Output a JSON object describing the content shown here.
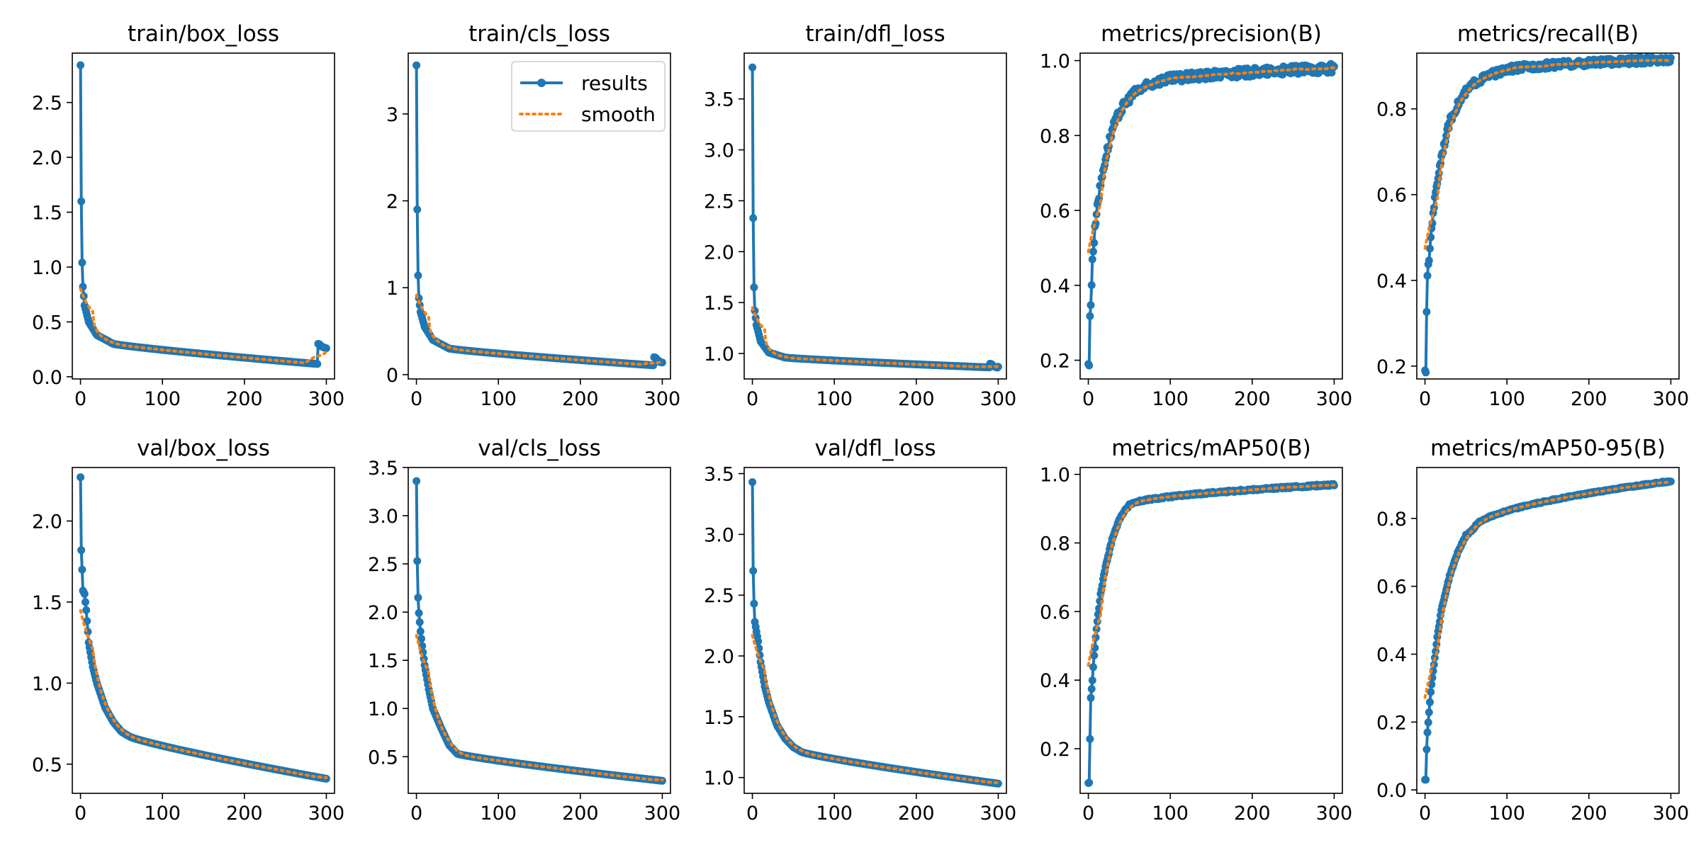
{
  "colors": {
    "results": "#1f77b4",
    "smooth": "#ff7f0e"
  },
  "legend": {
    "results_label": "results",
    "smooth_label": "smooth",
    "location": "upper right of train/cls_loss"
  },
  "chart_data": [
    {
      "type": "line",
      "title": "train/box_loss",
      "xlim": [
        -10,
        310
      ],
      "ylim": [
        -0.02,
        2.95
      ],
      "xticks": [
        {
          "v": 0,
          "label": "0"
        },
        {
          "v": 100,
          "label": "100"
        },
        {
          "v": 200,
          "label": "200"
        },
        {
          "v": 300,
          "label": "300"
        }
      ],
      "yticks": [
        {
          "v": 0,
          "label": "0.0"
        },
        {
          "v": 0.5,
          "label": "0.5"
        },
        {
          "v": 1,
          "label": "1.0"
        },
        {
          "v": 1.5,
          "label": "1.5"
        },
        {
          "v": 2,
          "label": "2.0"
        },
        {
          "v": 2.5,
          "label": "2.5"
        }
      ],
      "shape": "decay",
      "y0": 2.84,
      "y_end": 0.11,
      "knee": 0.28,
      "k": 4.5,
      "anchors": [
        [
          1,
          1.6
        ],
        [
          2,
          1.04
        ],
        [
          3,
          0.82
        ],
        [
          5,
          0.65
        ],
        [
          10,
          0.5
        ],
        [
          20,
          0.38
        ],
        [
          40,
          0.3
        ]
      ],
      "tail": [
        [
          290,
          0.3
        ],
        [
          293,
          0.28
        ],
        [
          296,
          0.27
        ],
        [
          300,
          0.26
        ]
      ],
      "series": [
        {
          "name": "results",
          "values": "samples from shape"
        },
        {
          "name": "smooth",
          "values": "running mean of results"
        }
      ]
    },
    {
      "type": "line",
      "title": "train/cls_loss",
      "xlim": [
        -10,
        310
      ],
      "ylim": [
        -0.05,
        3.7
      ],
      "xticks": [
        {
          "v": 0,
          "label": "0"
        },
        {
          "v": 100,
          "label": "100"
        },
        {
          "v": 200,
          "label": "200"
        },
        {
          "v": 300,
          "label": "300"
        }
      ],
      "yticks": [
        {
          "v": 0,
          "label": "0"
        },
        {
          "v": 1,
          "label": "1"
        },
        {
          "v": 2,
          "label": "2"
        },
        {
          "v": 3,
          "label": "3"
        }
      ],
      "shape": "decay",
      "y0": 3.56,
      "y_end": 0.1,
      "knee": 0.25,
      "k": 4.5,
      "anchors": [
        [
          1,
          1.9
        ],
        [
          2,
          1.14
        ],
        [
          3,
          0.88
        ],
        [
          5,
          0.72
        ],
        [
          10,
          0.55
        ],
        [
          20,
          0.4
        ],
        [
          40,
          0.3
        ]
      ],
      "tail": [
        [
          290,
          0.2
        ],
        [
          293,
          0.17
        ],
        [
          296,
          0.15
        ],
        [
          300,
          0.14
        ]
      ],
      "series": [
        {
          "name": "results"
        },
        {
          "name": "smooth"
        }
      ]
    },
    {
      "type": "line",
      "title": "train/dfl_loss",
      "xlim": [
        -10,
        310
      ],
      "ylim": [
        0.75,
        3.95
      ],
      "xticks": [
        {
          "v": 0,
          "label": "0"
        },
        {
          "v": 100,
          "label": "100"
        },
        {
          "v": 200,
          "label": "200"
        },
        {
          "v": 300,
          "label": "300"
        }
      ],
      "yticks": [
        {
          "v": 1,
          "label": "1.0"
        },
        {
          "v": 1.5,
          "label": "1.5"
        },
        {
          "v": 2,
          "label": "2.0"
        },
        {
          "v": 2.5,
          "label": "2.5"
        },
        {
          "v": 3,
          "label": "3.0"
        },
        {
          "v": 3.5,
          "label": "3.5"
        }
      ],
      "shape": "decay",
      "y0": 3.81,
      "y_end": 0.86,
      "knee": 0.96,
      "k": 4.5,
      "anchors": [
        [
          1,
          2.33
        ],
        [
          2,
          1.65
        ],
        [
          3,
          1.42
        ],
        [
          5,
          1.28
        ],
        [
          10,
          1.12
        ],
        [
          20,
          1.01
        ],
        [
          40,
          0.96
        ]
      ],
      "tail": [
        [
          290,
          0.9
        ],
        [
          293,
          0.88
        ],
        [
          296,
          0.87
        ],
        [
          300,
          0.87
        ]
      ],
      "series": [
        {
          "name": "results"
        },
        {
          "name": "smooth"
        }
      ]
    },
    {
      "type": "line",
      "title": "metrics/precision(B)",
      "xlim": [
        -10,
        310
      ],
      "ylim": [
        0.15,
        1.02
      ],
      "xticks": [
        {
          "v": 0,
          "label": "0"
        },
        {
          "v": 100,
          "label": "100"
        },
        {
          "v": 200,
          "label": "200"
        },
        {
          "v": 300,
          "label": "300"
        }
      ],
      "yticks": [
        {
          "v": 0.2,
          "label": "0.2"
        },
        {
          "v": 0.4,
          "label": "0.4"
        },
        {
          "v": 0.6,
          "label": "0.6"
        },
        {
          "v": 0.8,
          "label": "0.8"
        },
        {
          "v": 1,
          "label": "1.0"
        }
      ],
      "shape": "rise",
      "y0": 0.19,
      "y_end": 0.98,
      "knee": 0.93,
      "k": 0.25,
      "jitter": 0.012,
      "anchors": [
        [
          1,
          0.19
        ],
        [
          2,
          0.31
        ],
        [
          3,
          0.35
        ],
        [
          5,
          0.47
        ],
        [
          7,
          0.52
        ],
        [
          10,
          0.6
        ],
        [
          15,
          0.67
        ],
        [
          20,
          0.73
        ],
        [
          25,
          0.78
        ],
        [
          30,
          0.82
        ],
        [
          40,
          0.87
        ],
        [
          50,
          0.9
        ],
        [
          60,
          0.92
        ],
        [
          80,
          0.94
        ]
      ],
      "series": [
        {
          "name": "results"
        },
        {
          "name": "smooth"
        }
      ]
    },
    {
      "type": "line",
      "title": "metrics/recall(B)",
      "xlim": [
        -10,
        310
      ],
      "ylim": [
        0.17,
        0.93
      ],
      "xticks": [
        {
          "v": 0,
          "label": "0"
        },
        {
          "v": 100,
          "label": "100"
        },
        {
          "v": 200,
          "label": "200"
        },
        {
          "v": 300,
          "label": "300"
        }
      ],
      "yticks": [
        {
          "v": 0.2,
          "label": "0.2"
        },
        {
          "v": 0.4,
          "label": "0.4"
        },
        {
          "v": 0.6,
          "label": "0.6"
        },
        {
          "v": 0.8,
          "label": "0.8"
        }
      ],
      "shape": "rise",
      "y0": 0.19,
      "y_end": 0.915,
      "knee": 0.88,
      "k": 0.2,
      "jitter": 0.008,
      "anchors": [
        [
          1,
          0.19
        ],
        [
          2,
          0.32
        ],
        [
          3,
          0.41
        ],
        [
          5,
          0.45
        ],
        [
          7,
          0.5
        ],
        [
          10,
          0.56
        ],
        [
          15,
          0.63
        ],
        [
          20,
          0.69
        ],
        [
          25,
          0.73
        ],
        [
          30,
          0.77
        ],
        [
          40,
          0.81
        ],
        [
          50,
          0.84
        ],
        [
          60,
          0.86
        ],
        [
          80,
          0.88
        ],
        [
          100,
          0.89
        ]
      ],
      "series": [
        {
          "name": "results"
        },
        {
          "name": "smooth"
        }
      ]
    },
    {
      "type": "line",
      "title": "val/box_loss",
      "xlim": [
        -10,
        310
      ],
      "ylim": [
        0.32,
        2.33
      ],
      "xticks": [
        {
          "v": 0,
          "label": "0"
        },
        {
          "v": 100,
          "label": "100"
        },
        {
          "v": 200,
          "label": "200"
        },
        {
          "v": 300,
          "label": "300"
        }
      ],
      "yticks": [
        {
          "v": 0.5,
          "label": "0.5"
        },
        {
          "v": 1,
          "label": "1.0"
        },
        {
          "v": 1.5,
          "label": "1.5"
        },
        {
          "v": 2,
          "label": "2.0"
        }
      ],
      "shape": "decay",
      "y0": 2.27,
      "y_end": 0.41,
      "knee": 0.66,
      "k": 0.7,
      "anchors": [
        [
          1,
          1.82
        ],
        [
          2,
          1.7
        ],
        [
          3,
          1.57
        ],
        [
          5,
          1.55
        ],
        [
          7,
          1.45
        ],
        [
          10,
          1.25
        ],
        [
          15,
          1.1
        ],
        [
          20,
          1.0
        ],
        [
          30,
          0.85
        ],
        [
          40,
          0.76
        ],
        [
          50,
          0.7
        ],
        [
          60,
          0.67
        ]
      ],
      "series": [
        {
          "name": "results"
        },
        {
          "name": "smooth"
        }
      ]
    },
    {
      "type": "line",
      "title": "val/cls_loss",
      "xlim": [
        -10,
        310
      ],
      "ylim": [
        0.12,
        3.5
      ],
      "xticks": [
        {
          "v": 0,
          "label": "0"
        },
        {
          "v": 100,
          "label": "100"
        },
        {
          "v": 200,
          "label": "200"
        },
        {
          "v": 300,
          "label": "300"
        }
      ],
      "yticks": [
        {
          "v": 0.5,
          "label": "0.5"
        },
        {
          "v": 1,
          "label": "1.0"
        },
        {
          "v": 1.5,
          "label": "1.5"
        },
        {
          "v": 2,
          "label": "2.0"
        },
        {
          "v": 2.5,
          "label": "2.5"
        },
        {
          "v": 3,
          "label": "3.0"
        },
        {
          "v": 3.5,
          "label": "3.5"
        }
      ],
      "shape": "decay",
      "y0": 3.36,
      "y_end": 0.25,
      "knee": 0.5,
      "k": 0.9,
      "anchors": [
        [
          1,
          2.53
        ],
        [
          2,
          2.15
        ],
        [
          3,
          1.99
        ],
        [
          5,
          1.8
        ],
        [
          7,
          1.65
        ],
        [
          10,
          1.45
        ],
        [
          15,
          1.2
        ],
        [
          20,
          1.0
        ],
        [
          30,
          0.8
        ],
        [
          40,
          0.62
        ],
        [
          50,
          0.53
        ]
      ],
      "series": [
        {
          "name": "results"
        },
        {
          "name": "smooth"
        }
      ]
    },
    {
      "type": "line",
      "title": "val/dfl_loss",
      "xlim": [
        -10,
        310
      ],
      "ylim": [
        0.87,
        3.55
      ],
      "xticks": [
        {
          "v": 0,
          "label": "0"
        },
        {
          "v": 100,
          "label": "100"
        },
        {
          "v": 200,
          "label": "200"
        },
        {
          "v": 300,
          "label": "300"
        }
      ],
      "yticks": [
        {
          "v": 1,
          "label": "1.0"
        },
        {
          "v": 1.5,
          "label": "1.5"
        },
        {
          "v": 2,
          "label": "2.0"
        },
        {
          "v": 2.5,
          "label": "2.5"
        },
        {
          "v": 3,
          "label": "3.0"
        },
        {
          "v": 3.5,
          "label": "3.5"
        }
      ],
      "shape": "decay",
      "y0": 3.43,
      "y_end": 0.95,
      "knee": 1.22,
      "k": 0.75,
      "anchors": [
        [
          1,
          2.7
        ],
        [
          2,
          2.43
        ],
        [
          3,
          2.28
        ],
        [
          5,
          2.2
        ],
        [
          7,
          2.12
        ],
        [
          10,
          1.95
        ],
        [
          15,
          1.75
        ],
        [
          20,
          1.62
        ],
        [
          30,
          1.43
        ],
        [
          40,
          1.32
        ],
        [
          50,
          1.25
        ],
        [
          60,
          1.21
        ]
      ],
      "series": [
        {
          "name": "results"
        },
        {
          "name": "smooth"
        }
      ]
    },
    {
      "type": "line",
      "title": "metrics/mAP50(B)",
      "xlim": [
        -10,
        310
      ],
      "ylim": [
        0.07,
        1.02
      ],
      "xticks": [
        {
          "v": 0,
          "label": "0"
        },
        {
          "v": 100,
          "label": "100"
        },
        {
          "v": 200,
          "label": "200"
        },
        {
          "v": 300,
          "label": "300"
        }
      ],
      "yticks": [
        {
          "v": 0.2,
          "label": "0.2"
        },
        {
          "v": 0.4,
          "label": "0.4"
        },
        {
          "v": 0.6,
          "label": "0.6"
        },
        {
          "v": 0.8,
          "label": "0.8"
        },
        {
          "v": 1,
          "label": "1.0"
        }
      ],
      "shape": "rise",
      "y0": 0.1,
      "y_end": 0.97,
      "knee": 0.91,
      "k": 0.25,
      "jitter": 0.003,
      "anchors": [
        [
          1,
          0.1
        ],
        [
          2,
          0.23
        ],
        [
          3,
          0.35
        ],
        [
          5,
          0.4
        ],
        [
          7,
          0.47
        ],
        [
          10,
          0.55
        ],
        [
          15,
          0.65
        ],
        [
          20,
          0.72
        ],
        [
          25,
          0.77
        ],
        [
          30,
          0.82
        ],
        [
          40,
          0.88
        ],
        [
          50,
          0.91
        ]
      ],
      "series": [
        {
          "name": "results"
        },
        {
          "name": "smooth"
        }
      ]
    },
    {
      "type": "line",
      "title": "metrics/mAP50-95(B)",
      "xlim": [
        -10,
        310
      ],
      "ylim": [
        -0.01,
        0.95
      ],
      "xticks": [
        {
          "v": 0,
          "label": "0"
        },
        {
          "v": 100,
          "label": "100"
        },
        {
          "v": 200,
          "label": "200"
        },
        {
          "v": 300,
          "label": "300"
        }
      ],
      "yticks": [
        {
          "v": 0,
          "label": "0.0"
        },
        {
          "v": 0.2,
          "label": "0.2"
        },
        {
          "v": 0.4,
          "label": "0.4"
        },
        {
          "v": 0.6,
          "label": "0.6"
        },
        {
          "v": 0.8,
          "label": "0.8"
        }
      ],
      "shape": "rise",
      "y0": 0.03,
      "y_end": 0.91,
      "knee": 0.76,
      "k": 0.2,
      "jitter": 0.002,
      "anchors": [
        [
          1,
          0.03
        ],
        [
          2,
          0.12
        ],
        [
          3,
          0.17
        ],
        [
          5,
          0.23
        ],
        [
          7,
          0.29
        ],
        [
          10,
          0.35
        ],
        [
          15,
          0.45
        ],
        [
          20,
          0.53
        ],
        [
          25,
          0.58
        ],
        [
          30,
          0.63
        ],
        [
          40,
          0.7
        ],
        [
          50,
          0.75
        ],
        [
          60,
          0.77
        ]
      ],
      "series": [
        {
          "name": "results"
        },
        {
          "name": "smooth"
        }
      ]
    }
  ]
}
